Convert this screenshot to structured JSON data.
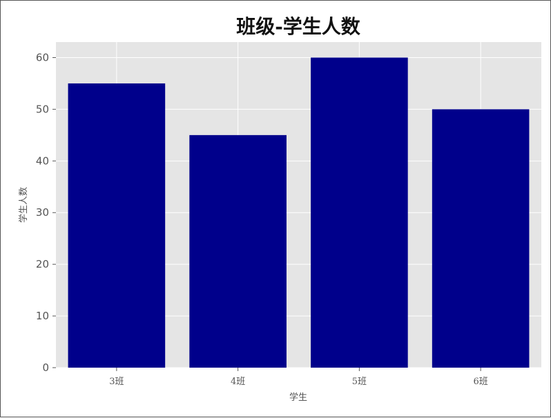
{
  "chart_data": {
    "type": "bar",
    "title": "班级-学生人数",
    "xlabel": "学生",
    "ylabel": "学生人数",
    "categories": [
      "3班",
      "4班",
      "5班",
      "6班"
    ],
    "values": [
      55,
      45,
      60,
      50
    ],
    "ylim": [
      0,
      63
    ],
    "yticks": [
      0,
      10,
      20,
      30,
      40,
      50,
      60
    ],
    "grid": true,
    "colors": {
      "bar": "#00008b",
      "plot_background": "#e5e5e5",
      "grid": "#ffffff"
    }
  }
}
